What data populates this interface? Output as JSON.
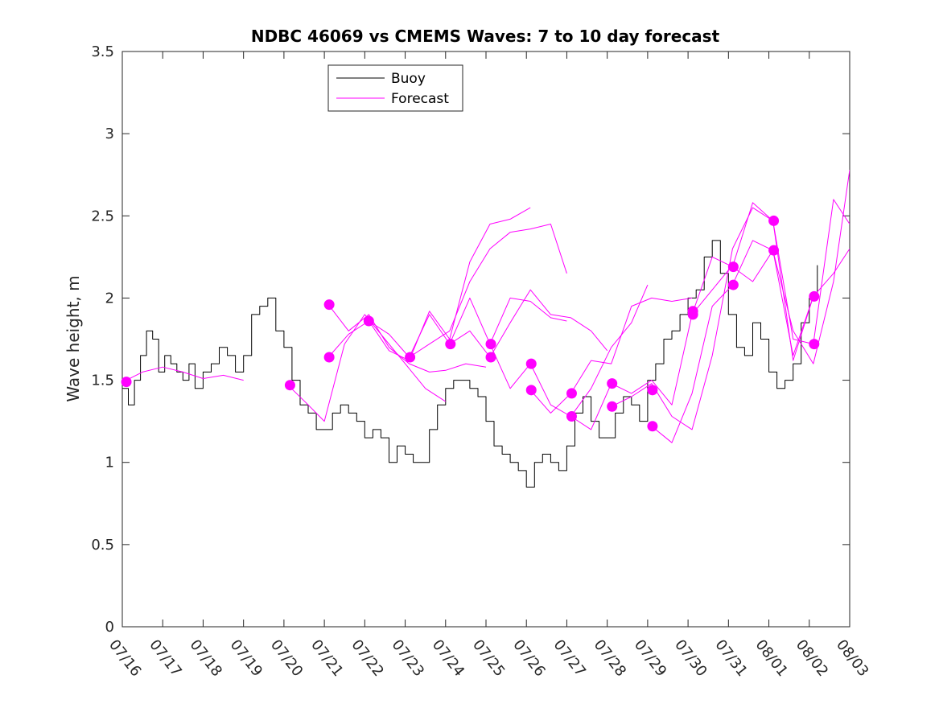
{
  "chart_data": {
    "type": "line",
    "title": "NDBC 46069 vs CMEMS Waves: 7 to 10 day forecast",
    "xlabel": "",
    "ylabel": "Wave height, m",
    "xlim": [
      0,
      18
    ],
    "ylim": [
      0,
      3.5
    ],
    "yticks": [
      0,
      0.5,
      1,
      1.5,
      2,
      2.5,
      3,
      3.5
    ],
    "ytick_labels": [
      "0",
      "0.5",
      "1",
      "1.5",
      "2",
      "2.5",
      "3",
      "3.5"
    ],
    "xticks": [
      0,
      1,
      2,
      3,
      4,
      5,
      6,
      7,
      8,
      9,
      10,
      11,
      12,
      13,
      14,
      15,
      16,
      17,
      18
    ],
    "xtick_labels": [
      "07/16",
      "07/17",
      "07/18",
      "07/19",
      "07/20",
      "07/21",
      "07/22",
      "07/23",
      "07/24",
      "07/25",
      "07/26",
      "07/27",
      "07/28",
      "07/29",
      "07/30",
      "07/31",
      "08/01",
      "08/02",
      "08/03"
    ],
    "grid": false,
    "legend": {
      "position": "top-left",
      "entries": [
        {
          "label": "Buoy",
          "color": "#000000"
        },
        {
          "label": "Forecast",
          "color": "#ff00ff"
        }
      ]
    },
    "colors": {
      "buoy": "#000000",
      "forecast": "#ff00ff"
    },
    "series": [
      {
        "name": "Buoy",
        "color": "#000000",
        "kind": "step",
        "x": [
          0,
          0.15,
          0.3,
          0.45,
          0.6,
          0.75,
          0.9,
          1.05,
          1.2,
          1.35,
          1.5,
          1.65,
          1.8,
          2.0,
          2.2,
          2.4,
          2.6,
          2.8,
          3.0,
          3.2,
          3.4,
          3.6,
          3.8,
          4.0,
          4.2,
          4.4,
          4.6,
          4.8,
          5.0,
          5.2,
          5.4,
          5.6,
          5.8,
          6.0,
          6.2,
          6.4,
          6.6,
          6.8,
          7.0,
          7.2,
          7.4,
          7.6,
          7.8,
          8.0,
          8.2,
          8.4,
          8.6,
          8.8,
          9.0,
          9.2,
          9.4,
          9.6,
          9.8,
          10.0,
          10.2,
          10.4,
          10.6,
          10.8,
          11.0,
          11.2,
          11.4,
          11.6,
          11.8,
          12.0,
          12.2,
          12.4,
          12.6,
          12.8,
          13.0,
          13.2,
          13.4,
          13.6,
          13.8,
          14.0,
          14.2,
          14.4,
          14.6,
          14.8,
          15.0,
          15.2,
          15.4,
          15.6,
          15.8,
          16.0,
          16.2,
          16.4,
          16.6,
          16.8,
          17.0,
          17.2
        ],
        "values": [
          1.45,
          1.35,
          1.5,
          1.65,
          1.8,
          1.75,
          1.55,
          1.65,
          1.6,
          1.55,
          1.5,
          1.6,
          1.45,
          1.55,
          1.6,
          1.7,
          1.65,
          1.55,
          1.65,
          1.9,
          1.95,
          2.0,
          1.8,
          1.7,
          1.5,
          1.35,
          1.3,
          1.2,
          1.2,
          1.3,
          1.35,
          1.3,
          1.25,
          1.15,
          1.2,
          1.15,
          1.0,
          1.1,
          1.05,
          1.0,
          1.0,
          1.2,
          1.35,
          1.45,
          1.5,
          1.5,
          1.45,
          1.4,
          1.25,
          1.1,
          1.05,
          1.0,
          0.95,
          0.85,
          1.0,
          1.05,
          1.0,
          0.95,
          1.1,
          1.3,
          1.4,
          1.25,
          1.15,
          1.15,
          1.3,
          1.4,
          1.35,
          1.25,
          1.5,
          1.6,
          1.75,
          1.8,
          1.9,
          2.0,
          2.05,
          2.25,
          2.35,
          2.15,
          1.9,
          1.7,
          1.65,
          1.85,
          1.75,
          1.55,
          1.45,
          1.5,
          1.6,
          1.85,
          2.0,
          2.2
        ]
      },
      {
        "name": "Forecast",
        "color": "#ff00ff",
        "kind": "line",
        "x": [
          0.1,
          0.5,
          1.0,
          1.5,
          2.0,
          2.5,
          3.0
        ],
        "values": [
          1.5,
          1.55,
          1.58,
          1.55,
          1.51,
          1.53,
          1.5
        ]
      },
      {
        "name": "Forecast",
        "color": "#ff00ff",
        "kind": "line",
        "x": [
          4.1,
          4.6,
          5.0,
          5.5,
          6.0,
          6.5,
          7.0,
          7.5,
          8.0
        ],
        "values": [
          1.47,
          1.35,
          1.25,
          1.72,
          1.9,
          1.75,
          1.6,
          1.45,
          1.37
        ]
      },
      {
        "name": "Forecast",
        "color": "#ff00ff",
        "kind": "line",
        "x": [
          5.1,
          5.6,
          6.1,
          6.6,
          7.1,
          7.6,
          8.0,
          8.5,
          9.0
        ],
        "values": [
          1.96,
          1.8,
          1.9,
          1.7,
          1.6,
          1.55,
          1.56,
          1.6,
          1.58
        ]
      },
      {
        "name": "Forecast",
        "color": "#ff00ff",
        "kind": "line",
        "x": [
          5.1,
          5.6,
          6.1,
          6.6,
          7.1,
          7.6,
          8.1,
          8.6,
          9.1,
          9.6,
          10.1
        ],
        "values": [
          1.64,
          1.78,
          1.86,
          1.68,
          1.62,
          1.92,
          1.75,
          2.22,
          2.45,
          2.48,
          2.55
        ]
      },
      {
        "name": "Forecast",
        "color": "#ff00ff",
        "kind": "line",
        "x": [
          6.1,
          6.6,
          7.1,
          7.6,
          8.1,
          8.6,
          9.1,
          9.6,
          10.1,
          10.6,
          11.0
        ],
        "values": [
          1.86,
          1.78,
          1.64,
          1.72,
          1.8,
          2.1,
          2.3,
          2.4,
          2.42,
          2.45,
          2.15
        ]
      },
      {
        "name": "Forecast",
        "color": "#ff00ff",
        "kind": "line",
        "x": [
          7.1,
          7.6,
          8.1,
          8.6,
          9.1,
          9.6,
          10.1,
          10.6,
          11.0
        ],
        "values": [
          1.64,
          1.9,
          1.72,
          2.0,
          1.72,
          2.0,
          1.98,
          1.88,
          1.86
        ]
      },
      {
        "name": "Forecast",
        "color": "#ff00ff",
        "kind": "line",
        "x": [
          8.1,
          8.6,
          9.1,
          9.6,
          10.1,
          10.6,
          11.1,
          11.6,
          12.0
        ],
        "values": [
          1.72,
          1.8,
          1.64,
          1.85,
          2.05,
          1.9,
          1.88,
          1.8,
          1.68
        ]
      },
      {
        "name": "Forecast",
        "color": "#ff00ff",
        "kind": "line",
        "x": [
          9.1,
          9.6,
          10.1,
          10.6,
          11.1,
          11.6,
          12.1,
          12.6,
          13.0
        ],
        "values": [
          1.72,
          1.45,
          1.6,
          1.35,
          1.28,
          1.45,
          1.7,
          1.85,
          2.08
        ]
      },
      {
        "name": "Forecast",
        "color": "#ff00ff",
        "kind": "line",
        "x": [
          10.1,
          10.6,
          11.1,
          11.6,
          12.1,
          12.6,
          13.1,
          13.6,
          14.1
        ],
        "values": [
          1.44,
          1.3,
          1.42,
          1.62,
          1.6,
          1.95,
          2.0,
          1.98,
          2.0
        ]
      },
      {
        "name": "Forecast",
        "color": "#ff00ff",
        "kind": "line",
        "x": [
          11.1,
          11.6,
          12.1,
          12.6,
          13.1,
          13.6,
          14.1,
          14.6,
          15.1
        ],
        "values": [
          1.28,
          1.2,
          1.48,
          1.42,
          1.5,
          1.35,
          1.9,
          2.05,
          2.2
        ]
      },
      {
        "name": "Forecast",
        "color": "#ff00ff",
        "kind": "line",
        "x": [
          12.1,
          12.6,
          13.1,
          13.6,
          14.1,
          14.6,
          15.1,
          15.6,
          16.1
        ],
        "values": [
          1.34,
          1.4,
          1.48,
          1.28,
          1.2,
          1.65,
          2.3,
          2.55,
          2.47
        ]
      },
      {
        "name": "Forecast",
        "color": "#ff00ff",
        "kind": "line",
        "x": [
          13.1,
          13.6,
          14.1,
          14.6,
          15.1,
          15.6,
          16.1,
          16.6,
          17.1
        ],
        "values": [
          1.22,
          1.12,
          1.42,
          1.95,
          2.08,
          2.35,
          2.29,
          1.65,
          2.01
        ]
      },
      {
        "name": "Forecast",
        "color": "#ff00ff",
        "kind": "line",
        "x": [
          14.1,
          14.6,
          15.1,
          15.6,
          16.1,
          16.6,
          17.1,
          17.6,
          18.0
        ],
        "values": [
          1.9,
          2.25,
          2.19,
          2.58,
          2.47,
          1.75,
          1.72,
          2.6,
          2.45
        ]
      },
      {
        "name": "Forecast",
        "color": "#ff00ff",
        "kind": "line",
        "x": [
          15.1,
          15.6,
          16.1,
          16.6,
          17.1,
          17.6,
          18.0
        ],
        "values": [
          2.19,
          2.1,
          2.29,
          1.8,
          1.6,
          2.1,
          2.78
        ]
      },
      {
        "name": "Forecast",
        "color": "#ff00ff",
        "kind": "line",
        "x": [
          16.1,
          16.6,
          17.1,
          17.6,
          18.0
        ],
        "values": [
          2.47,
          1.62,
          2.01,
          2.15,
          2.3
        ]
      }
    ],
    "markers": {
      "name": "Forecast",
      "color": "#ff00ff",
      "x": [
        0.1,
        4.15,
        5.12,
        5.12,
        6.1,
        7.12,
        8.12,
        9.12,
        9.12,
        10.12,
        10.12,
        11.12,
        11.12,
        12.12,
        12.12,
        13.12,
        13.12,
        14.12,
        14.12,
        15.12,
        15.12,
        16.12,
        16.12,
        17.12,
        17.12
      ],
      "values": [
        1.49,
        1.47,
        1.96,
        1.64,
        1.86,
        1.64,
        1.72,
        1.72,
        1.64,
        1.6,
        1.44,
        1.42,
        1.28,
        1.48,
        1.34,
        1.44,
        1.22,
        1.92,
        1.9,
        2.19,
        2.08,
        2.47,
        2.29,
        2.01,
        1.72
      ]
    }
  }
}
